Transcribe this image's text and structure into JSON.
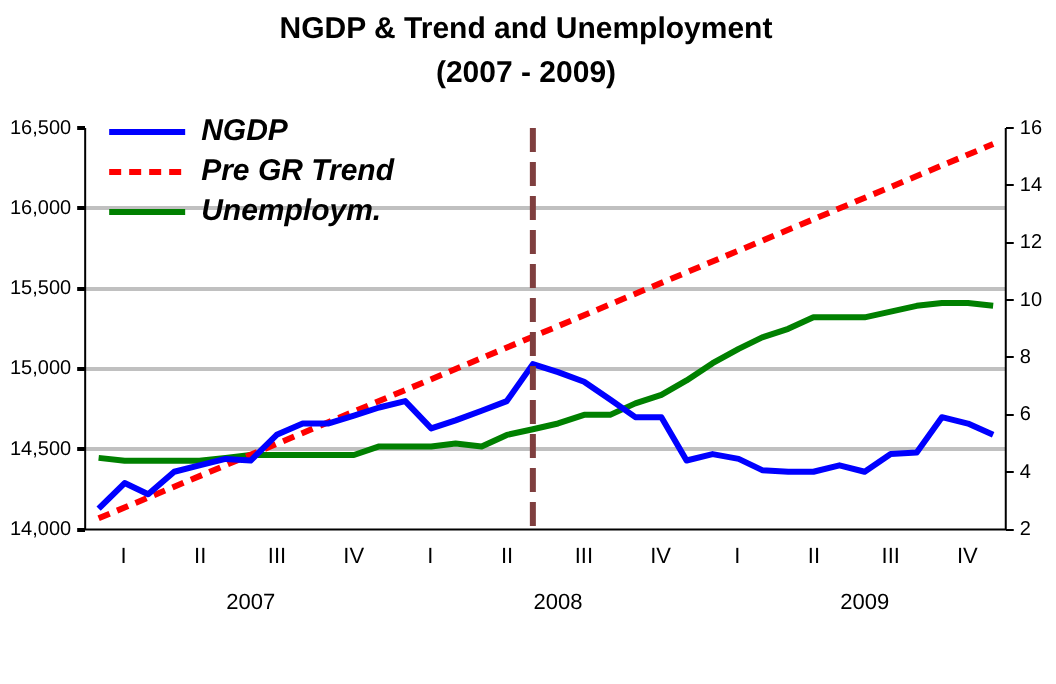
{
  "chart_data": {
    "type": "line",
    "title": "NGDP & Trend and Unemployment",
    "subtitle": "(2007 - 2009)",
    "x": [
      "2007-01",
      "2007-02",
      "2007-03",
      "2007-04",
      "2007-05",
      "2007-06",
      "2007-07",
      "2007-08",
      "2007-09",
      "2007-10",
      "2007-11",
      "2007-12",
      "2008-01",
      "2008-02",
      "2008-03",
      "2008-04",
      "2008-05",
      "2008-06",
      "2008-07",
      "2008-08",
      "2008-09",
      "2008-10",
      "2008-11",
      "2008-12",
      "2009-01",
      "2009-02",
      "2009-03",
      "2009-04",
      "2009-05",
      "2009-06",
      "2009-07",
      "2009-08",
      "2009-09",
      "2009-10",
      "2009-11",
      "2009-12"
    ],
    "series": [
      {
        "name": "NGDP",
        "color": "#0000ff",
        "values": [
          14130,
          14290,
          14220,
          14360,
          14400,
          14440,
          14430,
          14590,
          14660,
          14660,
          14710,
          14760,
          14800,
          14630,
          14680,
          14740,
          14800,
          15030,
          14980,
          14920,
          14810,
          14700,
          14700,
          14430,
          14470,
          14440,
          14370,
          14360,
          14360,
          14400,
          14360,
          14470,
          14480,
          14700,
          14660,
          14590
        ]
      },
      {
        "name": "Pre GR Trend",
        "color": "#ff0000",
        "line_style": "dashed",
        "x": [
          "2007-01",
          "2009-12"
        ],
        "values": [
          14070,
          16400
        ]
      },
      {
        "name": "Unemploym.",
        "color": "#008000",
        "axis": "y2",
        "values": [
          4.5,
          4.4,
          4.4,
          4.4,
          4.4,
          4.5,
          4.6,
          4.6,
          4.6,
          4.6,
          4.6,
          4.9,
          4.9,
          4.9,
          5.0,
          4.9,
          5.3,
          5.5,
          5.7,
          6.0,
          6.0,
          6.4,
          6.7,
          7.2,
          7.8,
          8.3,
          8.7,
          9.0,
          9.4,
          9.4,
          9.4,
          9.6,
          9.8,
          9.9,
          9.9,
          9.8
        ]
      }
    ],
    "xlim": [
      "2006-12-16",
      "2009-12-16"
    ],
    "xticks": [
      {
        "value": "2007-07-01",
        "label": "2007"
      },
      {
        "value": "2008-07-01",
        "label": "2008"
      },
      {
        "value": "2009-07-01",
        "label": "2009"
      }
    ],
    "annotations": [
      "I",
      "II",
      "III",
      "IV",
      "I",
      "II",
      "III",
      "IV",
      "I",
      "II",
      "III",
      "IV"
    ],
    "ylim": [
      14000,
      16500
    ],
    "yticks": [
      {
        "value": 14000,
        "label": "14,000"
      },
      {
        "value": 14500,
        "label": "14,500"
      },
      {
        "value": 15000,
        "label": "15,000"
      },
      {
        "value": 15500,
        "label": "15,500"
      },
      {
        "value": 16000,
        "label": "16,000"
      },
      {
        "value": 16500,
        "label": "16,500"
      }
    ],
    "y2lim": [
      2,
      16
    ],
    "y2ticks": [
      2,
      4,
      6,
      8,
      10,
      12,
      14,
      16
    ],
    "ref_lines": [
      {
        "axis": "x",
        "value": "2008-06",
        "color": "#7f3f3f",
        "line_style": "dashed"
      }
    ],
    "grid": "y",
    "legend": "top left",
    "marker": "none",
    "line_style": "solid"
  }
}
